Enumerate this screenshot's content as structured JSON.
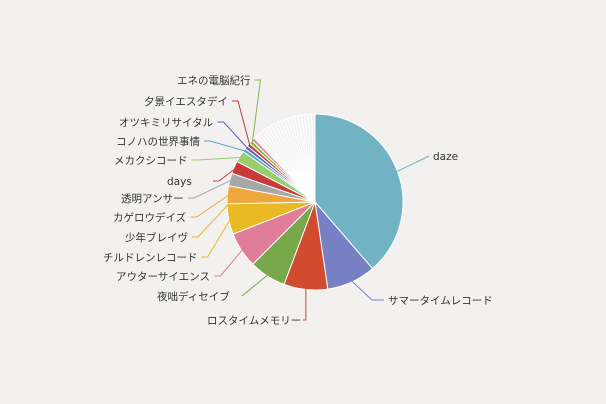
{
  "chart_data": {
    "type": "pie",
    "title": "",
    "slices": [
      {
        "label": "daze",
        "value": 36.5,
        "color": "#72b3c3"
      },
      {
        "label": "サマータイムレコード",
        "value": 8.5,
        "color": "#7680c2"
      },
      {
        "label": "ロスタイムメモリー",
        "value": 7.6,
        "color": "#d24b2f"
      },
      {
        "label": "夜咄ディセイブ",
        "value": 6.4,
        "color": "#78a84a"
      },
      {
        "label": "アウターサイエンス",
        "value": 6.2,
        "color": "#e07d99"
      },
      {
        "label": "チルドレンレコード",
        "value": 5.3,
        "color": "#eaba25"
      },
      {
        "label": "少年ブレイヴ",
        "value": 0,
        "color": "#e3b628"
      },
      {
        "label": "カゲロウデイズ",
        "value": 3.1,
        "color": "#eea73c"
      },
      {
        "label": "透明アンサー",
        "value": 2.2,
        "color": "#a7a7a7"
      },
      {
        "label": "days",
        "value": 2.2,
        "color": "#c93a3a"
      },
      {
        "label": "メカクシコード",
        "value": 2.0,
        "color": "#98ce6b"
      },
      {
        "label": "コノハの世界事情",
        "value": 0.6,
        "color": "#5aa4c9"
      },
      {
        "label": "オツキミリサイタル",
        "value": 0.6,
        "color": "#5463b2"
      },
      {
        "label": "夕景イエスタデイ",
        "value": 0.6,
        "color": "#c53a3a"
      },
      {
        "label": "エネの電脳紀行",
        "value": 0.6,
        "color": "#88b44a"
      },
      {
        "label": "",
        "value": 0.6,
        "color": "#e08fa6"
      },
      {
        "label": "",
        "value": 0.6,
        "color": "#f2f2f2"
      },
      {
        "label": "",
        "value": 0.6,
        "color": "#f2f2f2"
      },
      {
        "label": "",
        "value": 0.6,
        "color": "#f2f2f2"
      },
      {
        "label": "",
        "value": 0.6,
        "color": "#f2f2f2"
      },
      {
        "label": "",
        "value": 0.6,
        "color": "#f2f2f2"
      },
      {
        "label": "",
        "value": 0.6,
        "color": "#f2f2f2"
      },
      {
        "label": "",
        "value": 0.6,
        "color": "#f2f2f2"
      },
      {
        "label": "",
        "value": 0.6,
        "color": "#f2f2f2"
      },
      {
        "label": "",
        "value": 0.6,
        "color": "#f2f2f2"
      },
      {
        "label": "",
        "value": 0.6,
        "color": "#f2f2f2"
      },
      {
        "label": "",
        "value": 0.6,
        "color": "#f2f2f2"
      },
      {
        "label": "",
        "value": 0.6,
        "color": "#f2f2f2"
      },
      {
        "label": "",
        "value": 0.6,
        "color": "#f2f2f2"
      },
      {
        "label": "",
        "value": 0.6,
        "color": "#f2f2f2"
      },
      {
        "label": "",
        "value": 0.6,
        "color": "#f2f2f2"
      },
      {
        "label": "",
        "value": 0.6,
        "color": "#f2f2f2"
      },
      {
        "label": "",
        "value": 0.6,
        "color": "#f2f2f2"
      },
      {
        "label": "",
        "value": 0.6,
        "color": "#f2f2f2"
      },
      {
        "label": "",
        "value": 0.6,
        "color": "#f2f2f2"
      }
    ],
    "legend": "none"
  }
}
